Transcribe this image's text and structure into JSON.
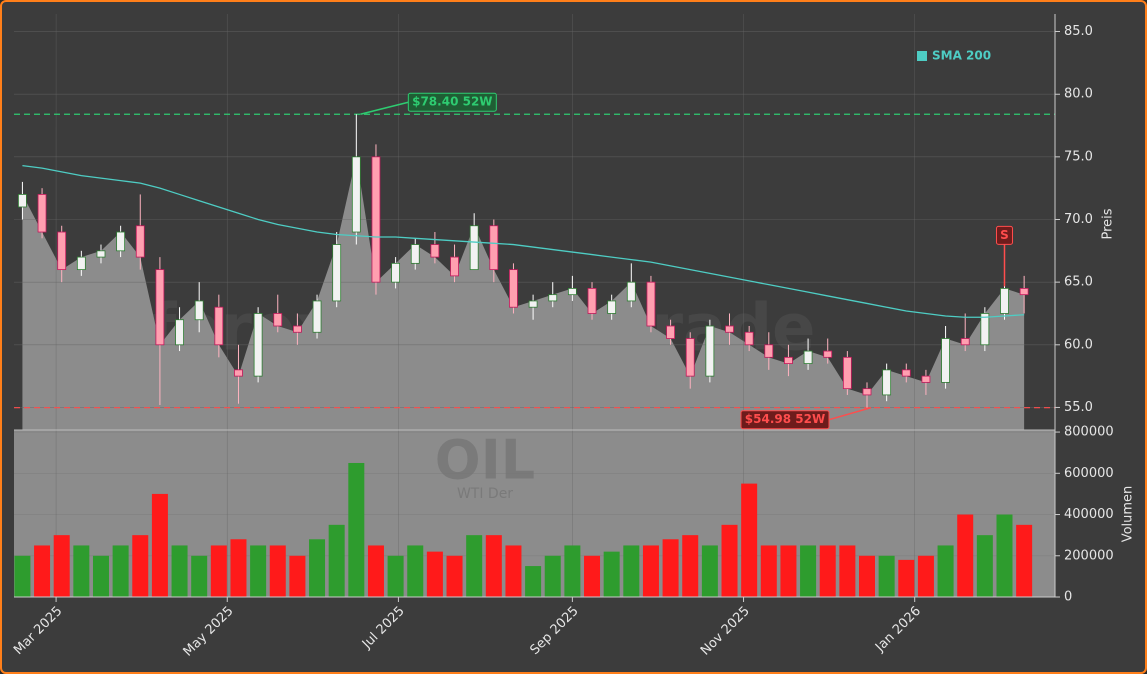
{
  "chart_data": {
    "type": "candlestick",
    "x": [
      "2025-02-17",
      "2025-02-24",
      "2025-03-03",
      "2025-03-10",
      "2025-03-17",
      "2025-03-24",
      "2025-03-31",
      "2025-04-07",
      "2025-04-14",
      "2025-04-21",
      "2025-04-28",
      "2025-05-05",
      "2025-05-12",
      "2025-05-19",
      "2025-05-26",
      "2025-06-02",
      "2025-06-09",
      "2025-06-16",
      "2025-06-23",
      "2025-06-30",
      "2025-07-07",
      "2025-07-14",
      "2025-07-21",
      "2025-07-28",
      "2025-08-04",
      "2025-08-11",
      "2025-08-18",
      "2025-08-25",
      "2025-09-01",
      "2025-09-08",
      "2025-09-15",
      "2025-09-22",
      "2025-09-29",
      "2025-10-06",
      "2025-10-13",
      "2025-10-20",
      "2025-10-27",
      "2025-11-03",
      "2025-11-10",
      "2025-11-17",
      "2025-11-24",
      "2025-12-01",
      "2025-12-08",
      "2025-12-15",
      "2025-12-22",
      "2025-12-29",
      "2026-01-05",
      "2026-01-12",
      "2026-01-19",
      "2026-01-26",
      "2026-02-02",
      "2026-02-09"
    ],
    "open": [
      71,
      72,
      69,
      66,
      67,
      67.5,
      69.5,
      66,
      60,
      62,
      63,
      58,
      57.5,
      62.5,
      61.5,
      61,
      63.5,
      69,
      75,
      65,
      66.5,
      68,
      67,
      66,
      69.5,
      66,
      63,
      63.5,
      64,
      64.5,
      62.5,
      63.5,
      65,
      61.5,
      60.5,
      57.5,
      61.5,
      61,
      60,
      59,
      58.5,
      59.5,
      59,
      56.5,
      56,
      58,
      57.5,
      57,
      60.5,
      60,
      62.5,
      64.5
    ],
    "high": [
      73,
      72.5,
      69.5,
      67.5,
      68,
      69.5,
      72,
      67,
      63,
      65,
      64,
      60,
      63,
      64,
      62.5,
      64,
      69,
      78.4,
      76,
      67,
      68.5,
      69,
      68,
      70.5,
      70,
      66.5,
      64,
      65,
      65.5,
      65,
      64,
      66.5,
      65.5,
      62,
      61,
      62,
      62.5,
      61.5,
      61,
      60,
      60.5,
      60.5,
      59.5,
      57,
      58.5,
      58.5,
      58,
      61.5,
      62.5,
      63,
      66.5,
      65.5
    ],
    "low": [
      70,
      68.5,
      65,
      65.5,
      66.5,
      67,
      66,
      55.2,
      59.5,
      61,
      59,
      55.3,
      57,
      61,
      60,
      60.5,
      63,
      68,
      64,
      64.5,
      66,
      66.5,
      65,
      66,
      65,
      62.5,
      62,
      63,
      63.5,
      62,
      62,
      63,
      61,
      60,
      56.5,
      57,
      60,
      59.5,
      58,
      57.5,
      58,
      58.5,
      56,
      54.98,
      55.5,
      57,
      56,
      56.5,
      59.5,
      59.5,
      62,
      62.5
    ],
    "close": [
      72,
      69,
      66,
      67,
      67.5,
      69,
      67,
      60,
      62,
      63.5,
      60,
      57.5,
      62.5,
      61.5,
      61,
      63.5,
      68,
      75,
      65,
      66.5,
      68,
      67,
      65.5,
      69.5,
      66,
      63,
      63.5,
      64,
      64.5,
      62.5,
      63.5,
      65,
      61.5,
      60.5,
      57.5,
      61.5,
      61,
      60,
      59,
      58.5,
      59.5,
      59,
      56.5,
      56,
      58,
      57.5,
      57,
      60.5,
      60,
      62.5,
      64.5,
      64
    ],
    "volume": [
      200000,
      250000,
      300000,
      250000,
      200000,
      250000,
      300000,
      500000,
      250000,
      200000,
      250000,
      280000,
      250000,
      250000,
      200000,
      280000,
      350000,
      650000,
      250000,
      200000,
      250000,
      220000,
      200000,
      300000,
      300000,
      250000,
      150000,
      200000,
      250000,
      200000,
      220000,
      250000,
      250000,
      280000,
      300000,
      250000,
      350000,
      550000,
      250000,
      250000,
      250000,
      250000,
      250000,
      200000,
      200000,
      180000,
      200000,
      250000,
      400000,
      300000,
      400000,
      350000
    ],
    "up_color": "#2e9c2e",
    "down_color": "#ff1a1a",
    "area_color": "#8c8c8c",
    "sma": {
      "name": "SMA 200",
      "color": "#4ecdc4",
      "values": [
        74.3,
        74.1,
        73.8,
        73.5,
        73.3,
        73.1,
        72.9,
        72.5,
        72,
        71.5,
        71,
        70.5,
        70,
        69.6,
        69.3,
        69,
        68.8,
        68.7,
        68.6,
        68.6,
        68.5,
        68.4,
        68.3,
        68.2,
        68.1,
        68,
        67.8,
        67.6,
        67.4,
        67.2,
        67,
        66.8,
        66.6,
        66.3,
        66,
        65.7,
        65.4,
        65.1,
        64.8,
        64.5,
        64.2,
        63.9,
        63.6,
        63.3,
        63,
        62.7,
        62.5,
        62.3,
        62.2,
        62.2,
        62.3,
        62.4
      ]
    },
    "xlim": [
      "2025-02-14",
      "2026-02-20"
    ],
    "xticks": [
      {
        "value": "2025-03-01",
        "label": "Mar 2025"
      },
      {
        "value": "2025-05-01",
        "label": "May 2025"
      },
      {
        "value": "2025-07-01",
        "label": "Jul 2025"
      },
      {
        "value": "2025-09-01",
        "label": "Sep 2025"
      },
      {
        "value": "2025-11-01",
        "label": "Nov 2025"
      },
      {
        "value": "2026-01-01",
        "label": "Jan 2026"
      }
    ],
    "ylim": [
      53.2,
      86.4
    ],
    "yticks": [
      {
        "value": 55,
        "label": "55.0"
      },
      {
        "value": 60,
        "label": "60.0"
      },
      {
        "value": 65,
        "label": "65.0"
      },
      {
        "value": 70,
        "label": "70.0"
      },
      {
        "value": 75,
        "label": "75.0"
      },
      {
        "value": 80,
        "label": "80.0"
      },
      {
        "value": 85,
        "label": "85.0"
      }
    ],
    "ylabel": "Preis",
    "volume_ylim": [
      0,
      810000
    ],
    "volume_yticks": [
      0,
      200000,
      400000,
      600000,
      800000
    ],
    "volume_ylabel": "Volumen",
    "grid": true,
    "annotations": [
      {
        "text": "$78.40 52W",
        "value": 78.4,
        "x": "2025-06-16",
        "color": "#2ecc71",
        "box": "#1f5e34"
      },
      {
        "text": "$54.98 52W",
        "value": 54.98,
        "x": "2025-12-15",
        "color": "#ff4d4d",
        "box": "#6e1c1c"
      }
    ],
    "signal": {
      "text": "S",
      "x": "2026-02-02",
      "value": 64.5,
      "color": "#ff4d4d"
    },
    "watermark": "forexsignale.trade",
    "symbol": "OIL",
    "symbol_sub": "WTI Der"
  }
}
